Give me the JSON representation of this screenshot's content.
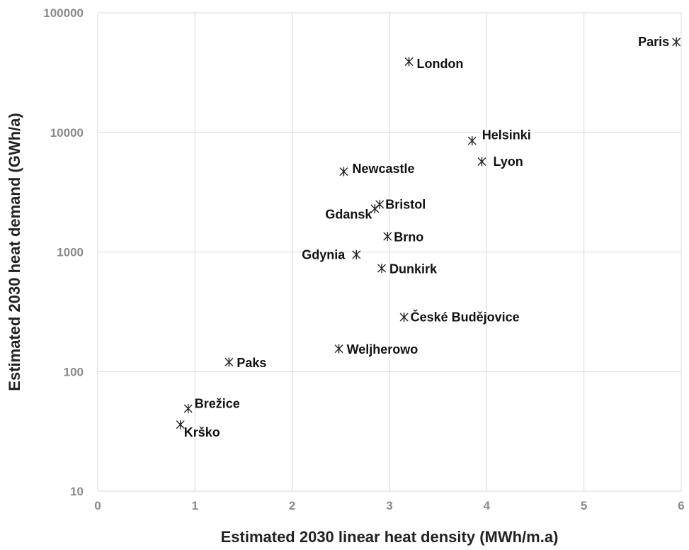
{
  "chart_data": {
    "type": "scatter",
    "xlabel": "Estimated 2030 linear heat density (MWh/m.a)",
    "ylabel": "Estimated 2030 heat demand (GWh/a)",
    "xlim": [
      0,
      6
    ],
    "ylim": [
      10,
      100000
    ],
    "y_scale": "log",
    "grid": true,
    "marker": "asterisk",
    "x_ticks": [
      "0",
      "1",
      "2",
      "3",
      "4",
      "5",
      "6"
    ],
    "y_ticks": [
      "10",
      "100",
      "1000",
      "10000",
      "100000"
    ],
    "points": [
      {
        "label": "Paris",
        "x": 5.95,
        "y": 57000
      },
      {
        "label": "London",
        "x": 3.2,
        "y": 39000
      },
      {
        "label": "Helsinki",
        "x": 3.85,
        "y": 8500
      },
      {
        "label": "Lyon",
        "x": 3.95,
        "y": 5700
      },
      {
        "label": "Newcastle",
        "x": 2.53,
        "y": 4700
      },
      {
        "label": "Bristol",
        "x": 2.9,
        "y": 2500
      },
      {
        "label": "Gdansk",
        "x": 2.85,
        "y": 2300
      },
      {
        "label": "Brno",
        "x": 2.98,
        "y": 1350
      },
      {
        "label": "Gdynia",
        "x": 2.66,
        "y": 950
      },
      {
        "label": "Dunkirk",
        "x": 2.92,
        "y": 730
      },
      {
        "label": "České Budějovice",
        "x": 3.15,
        "y": 285
      },
      {
        "label": "Weljherowo",
        "x": 2.48,
        "y": 155
      },
      {
        "label": "Paks",
        "x": 1.35,
        "y": 120
      },
      {
        "label": "Brežice",
        "x": 0.93,
        "y": 49
      },
      {
        "label": "Krško",
        "x": 0.85,
        "y": 36
      }
    ]
  }
}
